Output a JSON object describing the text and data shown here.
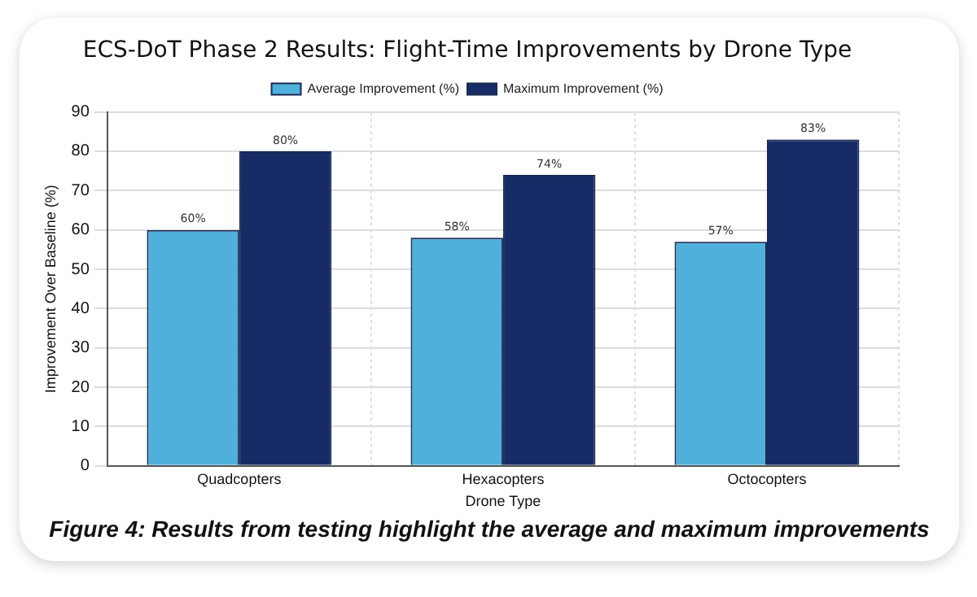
{
  "chart_data": {
    "type": "bar",
    "title": "ECS-DoT Phase 2 Results: Flight-Time Improvements by Drone Type",
    "xlabel": "Drone Type",
    "ylabel": "Improvement Over Baseline (%)",
    "categories": [
      "Quadcopters",
      "Hexacopters",
      "Octocopters"
    ],
    "series": [
      {
        "name": "Average Improvement (%)",
        "color": "#4fb0dc",
        "values": [
          60,
          58,
          57
        ],
        "value_labels": [
          "60%",
          "58%",
          "57%"
        ]
      },
      {
        "name": "Maximum Improvement (%)",
        "color": "#172c66",
        "values": [
          80,
          74,
          83
        ],
        "value_labels": [
          "80%",
          "74%",
          "83%"
        ]
      }
    ],
    "ylim": [
      0,
      90
    ],
    "yticks": [
      0,
      10,
      20,
      30,
      40,
      50,
      60,
      70,
      80,
      90
    ],
    "grid": true,
    "legend": "top",
    "annotations": [
      "Figure 4: Results from testing highlight the average and maximum improvements"
    ]
  }
}
